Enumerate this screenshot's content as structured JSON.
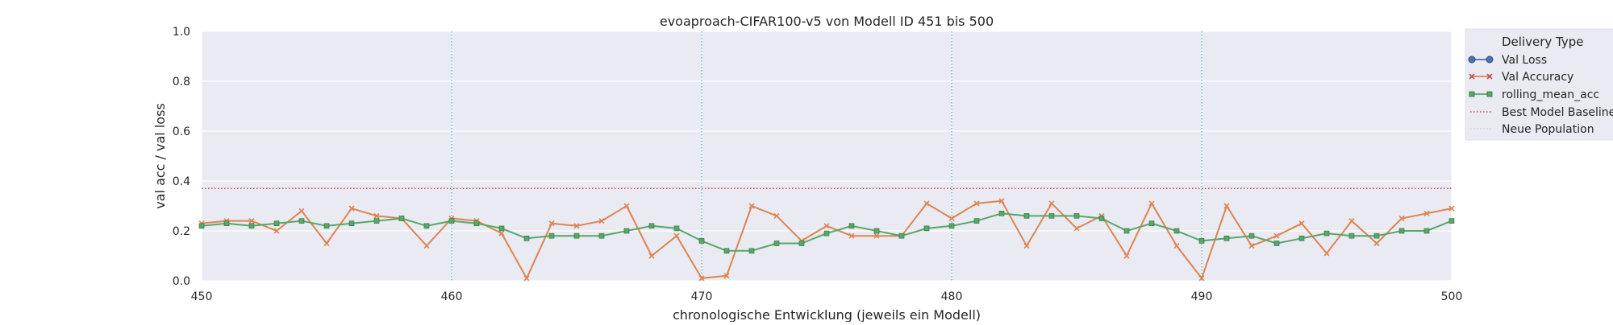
{
  "chart_data": {
    "type": "line",
    "title": "evoaproach-CIFAR100-v5 von Modell ID 451 bis 500",
    "xlabel": "chronologische Entwicklung (jeweils ein Modell)",
    "ylabel": "val acc / val loss",
    "xlim": [
      450,
      500
    ],
    "ylim": [
      0,
      1.0
    ],
    "xticks": [
      "450",
      "460",
      "470",
      "480",
      "490",
      "500"
    ],
    "xtick_values": [
      450,
      460,
      470,
      480,
      490,
      500
    ],
    "yticks": [
      "0.0",
      "0.2",
      "0.4",
      "0.6",
      "0.8",
      "1.0"
    ],
    "ytick_values": [
      0.0,
      0.2,
      0.4,
      0.6,
      0.8,
      1.0
    ],
    "grid": true,
    "legend": {
      "title": "Delivery Type",
      "placement": "outside-right",
      "entries": [
        "Val Loss",
        "Val Accuracy",
        "rolling_mean_acc",
        "Best Model Baseline",
        "Neue Population"
      ]
    },
    "series": [
      {
        "name": "Val Accuracy",
        "color": "#dd8452",
        "marker": "x",
        "x": [
          450,
          451,
          452,
          453,
          454,
          455,
          456,
          457,
          458,
          459,
          460,
          461,
          462,
          463,
          464,
          465,
          466,
          467,
          468,
          469,
          470,
          471,
          472,
          473,
          474,
          475,
          476,
          477,
          478,
          479,
          480,
          481,
          482,
          483,
          484,
          485,
          486,
          487,
          488,
          489,
          490,
          491,
          492,
          493,
          494,
          495,
          496,
          497,
          498,
          499,
          500
        ],
        "y": [
          0.23,
          0.24,
          0.24,
          0.2,
          0.28,
          0.15,
          0.29,
          0.26,
          0.25,
          0.14,
          0.25,
          0.24,
          0.19,
          0.01,
          0.23,
          0.22,
          0.24,
          0.3,
          0.1,
          0.18,
          0.01,
          0.02,
          0.3,
          0.26,
          0.16,
          0.22,
          0.18,
          0.18,
          0.18,
          0.31,
          0.25,
          0.31,
          0.32,
          0.14,
          0.31,
          0.21,
          0.26,
          0.1,
          0.31,
          0.14,
          0.01,
          0.3,
          0.14,
          0.18,
          0.23,
          0.11,
          0.24,
          0.15,
          0.25,
          0.27,
          0.29
        ]
      },
      {
        "name": "rolling_mean_acc",
        "color": "#55a868",
        "marker": "square",
        "x": [
          450,
          451,
          452,
          453,
          454,
          455,
          456,
          457,
          458,
          459,
          460,
          461,
          462,
          463,
          464,
          465,
          466,
          467,
          468,
          469,
          470,
          471,
          472,
          473,
          474,
          475,
          476,
          477,
          478,
          479,
          480,
          481,
          482,
          483,
          484,
          485,
          486,
          487,
          488,
          489,
          490,
          491,
          492,
          493,
          494,
          495,
          496,
          497,
          498,
          499,
          500
        ],
        "y": [
          0.22,
          0.23,
          0.22,
          0.23,
          0.24,
          0.22,
          0.23,
          0.24,
          0.25,
          0.22,
          0.24,
          0.23,
          0.21,
          0.17,
          0.18,
          0.18,
          0.18,
          0.2,
          0.22,
          0.21,
          0.16,
          0.12,
          0.12,
          0.15,
          0.15,
          0.19,
          0.22,
          0.2,
          0.18,
          0.21,
          0.22,
          0.24,
          0.27,
          0.26,
          0.26,
          0.26,
          0.25,
          0.2,
          0.23,
          0.2,
          0.16,
          0.17,
          0.18,
          0.15,
          0.17,
          0.19,
          0.18,
          0.18,
          0.2,
          0.2,
          0.24
        ]
      }
    ],
    "baseline": {
      "name": "Best Model Baseline",
      "color": "#c44e52",
      "y": 0.37
    },
    "population_lines": {
      "name": "Neue Population",
      "color": "#64b5cd",
      "x": [
        460,
        470,
        480,
        490
      ]
    },
    "val_loss_color": "#4c72b0"
  }
}
